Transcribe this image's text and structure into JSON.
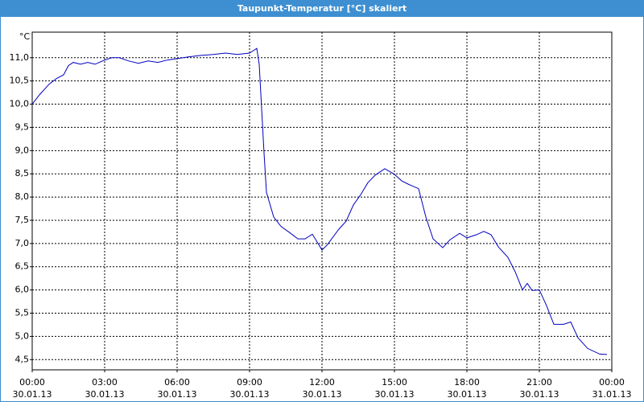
{
  "chart_data": {
    "type": "line",
    "title": "Taupunkt-Temperatur [°C] skaliert",
    "y_unit": "°C",
    "x": [
      0,
      0.3,
      0.7,
      1.0,
      1.3,
      1.5,
      1.7,
      2.0,
      2.3,
      2.6,
      3.0,
      3.3,
      3.6,
      4.0,
      4.4,
      4.8,
      5.2,
      5.6,
      6.0,
      6.5,
      7.0,
      7.5,
      8.0,
      8.5,
      9.0,
      9.3,
      9.4,
      9.6,
      9.7,
      10.0,
      10.3,
      10.7,
      11.0,
      11.3,
      11.6,
      12.0,
      12.2,
      12.7,
      13.0,
      13.3,
      13.6,
      13.9,
      14.2,
      14.6,
      15.0,
      15.3,
      15.6,
      16.0,
      16.3,
      16.6,
      17.0,
      17.3,
      17.7,
      18.0,
      18.4,
      18.7,
      19.0,
      19.3,
      19.7,
      20.0,
      20.3,
      20.5,
      20.7,
      21.0,
      21.3,
      21.6,
      22.0,
      22.3,
      22.6,
      23.0,
      23.5,
      23.8
    ],
    "series": [
      {
        "color": "#0000c0",
        "values": [
          10.0,
          10.2,
          10.43,
          10.55,
          10.63,
          10.83,
          10.9,
          10.86,
          10.9,
          10.86,
          10.95,
          11.0,
          11.0,
          10.93,
          10.88,
          10.93,
          10.9,
          10.95,
          10.98,
          11.02,
          11.05,
          11.07,
          11.1,
          11.07,
          11.1,
          11.2,
          10.86,
          8.95,
          8.1,
          7.57,
          7.37,
          7.22,
          7.1,
          7.1,
          7.2,
          6.86,
          6.96,
          7.31,
          7.48,
          7.83,
          8.05,
          8.31,
          8.47,
          8.61,
          8.49,
          8.35,
          8.27,
          8.18,
          7.57,
          7.1,
          6.91,
          7.08,
          7.22,
          7.12,
          7.19,
          7.26,
          7.19,
          6.93,
          6.7,
          6.39,
          6.0,
          6.14,
          5.99,
          6.0,
          5.66,
          5.26,
          5.26,
          5.31,
          4.97,
          4.74,
          4.62,
          4.61
        ]
      }
    ],
    "xlim": [
      0,
      24
    ],
    "xticks": [
      {
        "value": 0,
        "label": "00:00",
        "date": "30.01.13"
      },
      {
        "value": 3,
        "label": "03:00",
        "date": "30.01.13"
      },
      {
        "value": 6,
        "label": "06:00",
        "date": "30.01.13"
      },
      {
        "value": 9,
        "label": "09:00",
        "date": "30.01.13"
      },
      {
        "value": 12,
        "label": "12:00",
        "date": "30.01.13"
      },
      {
        "value": 15,
        "label": "15:00",
        "date": "30.01.13"
      },
      {
        "value": 18,
        "label": "18:00",
        "date": "30.01.13"
      },
      {
        "value": 21,
        "label": "21:00",
        "date": "30.01.13"
      },
      {
        "value": 24,
        "label": "00:00",
        "date": "31.01.13"
      }
    ],
    "ylim": [
      4.28,
      11.55
    ],
    "yticks": [
      {
        "value": 4.5,
        "label": "4,5"
      },
      {
        "value": 5.0,
        "label": "5,0"
      },
      {
        "value": 5.5,
        "label": "5,5"
      },
      {
        "value": 6.0,
        "label": "6,0"
      },
      {
        "value": 6.5,
        "label": "6,5"
      },
      {
        "value": 7.0,
        "label": "7,0"
      },
      {
        "value": 7.5,
        "label": "7,5"
      },
      {
        "value": 8.0,
        "label": "8,0"
      },
      {
        "value": 8.5,
        "label": "8,5"
      },
      {
        "value": 9.0,
        "label": "9,0"
      },
      {
        "value": 9.5,
        "label": "9,5"
      },
      {
        "value": 10.0,
        "label": "10,0"
      },
      {
        "value": 10.5,
        "label": "10,5"
      },
      {
        "value": 11.0,
        "label": "11,0"
      }
    ],
    "grid": true
  }
}
